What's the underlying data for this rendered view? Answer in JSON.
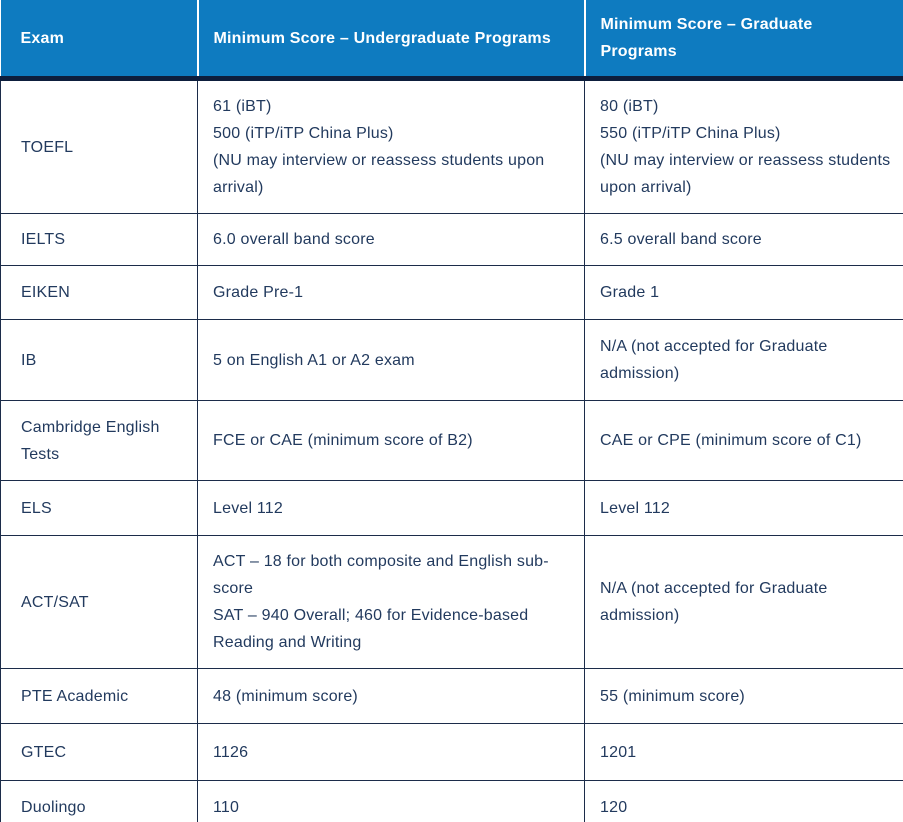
{
  "theme": {
    "header_bg": "#0e7bc0",
    "header_text": "#ffffff",
    "body_text": "#223a5e",
    "border_color": "#1c2c4a",
    "header_rule": "#0d1e3c"
  },
  "table": {
    "columns": [
      "Exam",
      "Minimum Score – Undergraduate Programs",
      "Minimum Score – Graduate Programs"
    ],
    "rows": [
      {
        "exam": "TOEFL",
        "undergraduate": "61 (iBT)\n500 (iTP/iTP China Plus)\n(NU may interview or reassess students upon arrival)",
        "graduate": "80 (iBT)\n550 (iTP/iTP China Plus)\n(NU may interview or reassess students upon arrival)"
      },
      {
        "exam": "IELTS",
        "undergraduate": "6.0 overall band score",
        "graduate": "6.5 overall band score"
      },
      {
        "exam": "EIKEN",
        "undergraduate": "Grade Pre-1",
        "graduate": "Grade 1"
      },
      {
        "exam": "IB",
        "undergraduate": "5 on English A1 or A2 exam",
        "graduate": "N/A (not accepted for Graduate admission)"
      },
      {
        "exam": "Cambridge English Tests",
        "undergraduate": "FCE or CAE (minimum score of B2)",
        "graduate": "CAE or CPE (minimum score of C1)"
      },
      {
        "exam": "ELS",
        "undergraduate": "Level 112",
        "graduate": "Level 112"
      },
      {
        "exam": "ACT/SAT",
        "undergraduate": "ACT – 18 for both composite and English sub-score\nSAT – 940 Overall; 460 for Evidence-based Reading and Writing",
        "graduate": "N/A (not accepted for Graduate admission)"
      },
      {
        "exam": "PTE Academic",
        "undergraduate": "48 (minimum score)",
        "graduate": "55 (minimum score)"
      },
      {
        "exam": "GTEC",
        "undergraduate": "1126",
        "graduate": "1201"
      },
      {
        "exam": "Duolingo",
        "undergraduate": "110",
        "graduate": "120"
      }
    ]
  }
}
